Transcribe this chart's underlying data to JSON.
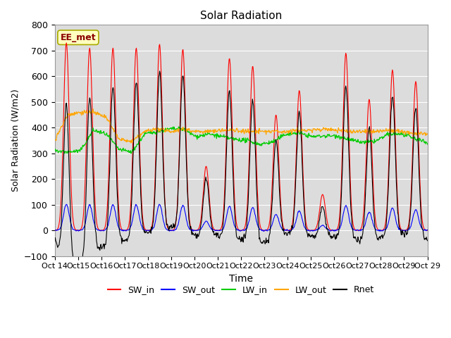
{
  "title": "Solar Radiation",
  "xlabel": "Time",
  "ylabel": "Solar Radiation (W/m2)",
  "ylim": [
    -100,
    800
  ],
  "annotation_text": "EE_met",
  "annotation_color": "#8B0000",
  "annotation_bg": "#FFFFC0",
  "tick_labels": [
    "Oct 14",
    "Oct 15",
    "Oct 16",
    "Oct 17",
    "Oct 18",
    "Oct 19",
    "Oct 20",
    "Oct 21",
    "Oct 22",
    "Oct 23",
    "Oct 24",
    "Oct 25",
    "Oct 26",
    "Oct 27",
    "Oct 28",
    "Oct 29"
  ],
  "series_colors": {
    "SW_in": "#FF0000",
    "SW_out": "#0000FF",
    "LW_in": "#00CC00",
    "LW_out": "#FFA500",
    "Rnet": "#000000"
  },
  "plot_bg": "#DCDCDC",
  "sw_in_peaks": [
    730,
    710,
    710,
    710,
    725,
    705,
    250,
    670,
    640,
    450,
    545,
    140,
    690,
    510,
    625,
    580
  ],
  "sw_out_ratio": 0.14,
  "lw_in_values": [
    310,
    305,
    310,
    390,
    375,
    315,
    305,
    375,
    385,
    395,
    395,
    365,
    375,
    365,
    355,
    350,
    335,
    345,
    375,
    380,
    365,
    368,
    368,
    352,
    342,
    348,
    375,
    375,
    358,
    342
  ],
  "lw_out_values": [
    350,
    450,
    460,
    460,
    440,
    355,
    345,
    385,
    395,
    385,
    395,
    385,
    385,
    390,
    390,
    385,
    385,
    385,
    385,
    390,
    390,
    395,
    390,
    385,
    385,
    385,
    390,
    385,
    378,
    375
  ],
  "night_rnet": -60,
  "n_days": 16,
  "figsize": [
    6.4,
    4.8
  ],
  "dpi": 100
}
